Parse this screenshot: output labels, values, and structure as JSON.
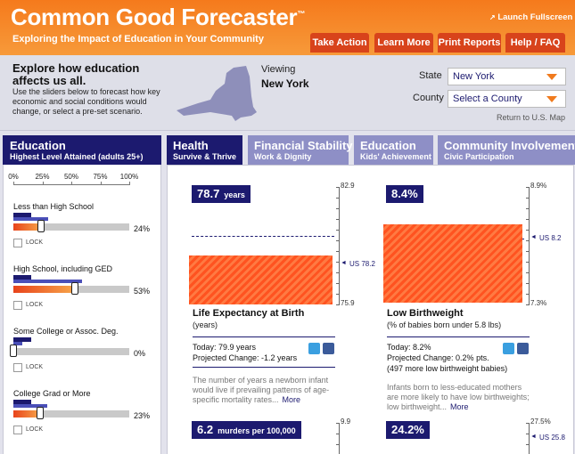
{
  "header": {
    "title": "Common Good Forecaster",
    "trademark": "™",
    "subtitle": "Exploring the Impact of Education in Your Community",
    "launch": "Launch Fullscreen",
    "nav": [
      "Take Action",
      "Learn More",
      "Print Reports",
      "Help / FAQ"
    ]
  },
  "intro": {
    "heading": "Explore how education affects us all.",
    "text": "Use the sliders below to forecast how key economic and social conditions would change, or select a pre-set scenario.",
    "viewing_label": "Viewing",
    "viewing": "New York",
    "state_label": "State",
    "state": "New York",
    "county_label": "County",
    "county": "Select a County",
    "return": "Return to U.S. Map"
  },
  "education_panel": {
    "title": "Education",
    "subtitle": "Highest Level Attained (adults 25+)",
    "scale": [
      "0%",
      "25%",
      "50%",
      "75%",
      "100%"
    ],
    "sliders": [
      {
        "label": "Less than High School",
        "value": "24%",
        "lock": "LOCK"
      },
      {
        "label": "High School, including GED",
        "value": "53%",
        "lock": "LOCK"
      },
      {
        "label": "Some College or Assoc. Deg.",
        "value": "0%",
        "lock": "LOCK"
      },
      {
        "label": "College Grad or More",
        "value": "23%",
        "lock": "LOCK"
      }
    ]
  },
  "tabs": [
    {
      "title": "Health",
      "subtitle": "Survive & Thrive"
    },
    {
      "title": "Financial Stability",
      "subtitle": "Work & Dignity"
    },
    {
      "title": "Education",
      "subtitle": "Kids' Achievement"
    },
    {
      "title": "Community Involvement",
      "subtitle": "Civic Participation"
    }
  ],
  "cards": [
    {
      "value": "78.7",
      "unit": "years",
      "top": "82.9",
      "bottom": "75.9",
      "us": "US 78.2",
      "title": "Life Expectancy at Birth",
      "subtitle": "(years)",
      "today": "Today: 79.9 years",
      "change": "Projected Change: -1.2 years",
      "description": "The number of years a newborn infant would live if prevailing patterns of age-specific mortality rates...",
      "more": "More"
    },
    {
      "value": "8.4%",
      "top": "8.9%",
      "bottom": "7.3%",
      "us": "US 8.2",
      "title": "Low Birthweight",
      "subtitle": "(% of babies born under 5.8 lbs)",
      "today": "Today: 8.2%",
      "change": "Projected Change: 0.2% pts.",
      "extra": "(497 more low birthweight babies)",
      "description": "Infants born to less-educated mothers are more likely to have low birthweights; low birthweight...",
      "more": "More"
    },
    {
      "value": "6.2",
      "unit": "murders per 100,000",
      "top": "9.9"
    },
    {
      "value": "24.2%",
      "top": "27.5%",
      "us": "US 25.8"
    }
  ]
}
